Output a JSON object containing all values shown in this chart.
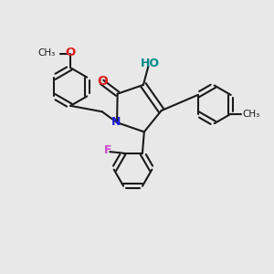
{
  "bg_color": "#e8e8e8",
  "bond_color": "#1a1a1a",
  "N_color": "#2020dd",
  "O_color": "#dd2020",
  "F_color": "#cc44cc",
  "OH_color": "#008888",
  "figsize": [
    3.0,
    3.0
  ],
  "dpi": 100,
  "xlim": [
    0,
    10
  ],
  "ylim": [
    0,
    10
  ]
}
